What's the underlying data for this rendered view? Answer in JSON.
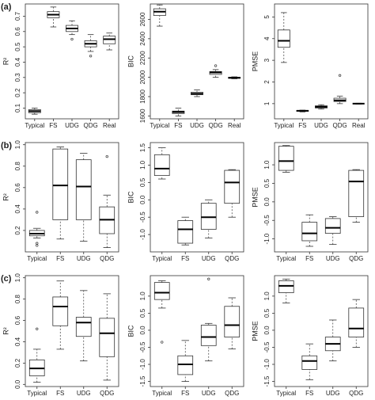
{
  "chart_data": [
    {
      "type": "box",
      "panel": "(a)",
      "ylabel": "R²",
      "categories": [
        "Typical",
        "FS",
        "UDG",
        "QDG",
        "Real"
      ],
      "ylim": [
        0.03,
        0.78
      ],
      "yticks": [
        0.1,
        0.2,
        0.3,
        0.4,
        0.5,
        0.6,
        0.7
      ],
      "boxes": [
        {
          "min": 0.06,
          "q1": 0.07,
          "median": 0.08,
          "q3": 0.09,
          "max": 0.1
        },
        {
          "min": 0.63,
          "q1": 0.69,
          "median": 0.71,
          "q3": 0.73,
          "max": 0.76
        },
        {
          "min": 0.58,
          "q1": 0.6,
          "median": 0.62,
          "q3": 0.64,
          "max": 0.67,
          "outliers": [
            0.55
          ]
        },
        {
          "min": 0.47,
          "q1": 0.5,
          "median": 0.52,
          "q3": 0.54,
          "max": 0.58,
          "outliers": [
            0.44
          ]
        },
        {
          "min": 0.48,
          "q1": 0.52,
          "median": 0.55,
          "q3": 0.57,
          "max": 0.59
        }
      ]
    },
    {
      "type": "box",
      "ylabel": "BIC",
      "categories": [
        "Typical",
        "FS",
        "UDG",
        "QDG",
        "Real"
      ],
      "ylim": [
        1570,
        2760
      ],
      "yticks": [
        1600,
        1800,
        2000,
        2200,
        2400,
        2600
      ],
      "boxes": [
        {
          "min": 2530,
          "q1": 2640,
          "median": 2680,
          "q3": 2710,
          "max": 2750
        },
        {
          "min": 1600,
          "q1": 1625,
          "median": 1640,
          "q3": 1650,
          "max": 1680
        },
        {
          "min": 1800,
          "q1": 1820,
          "median": 1830,
          "q3": 1845,
          "max": 1870
        },
        {
          "min": 2000,
          "q1": 2030,
          "median": 2050,
          "q3": 2060,
          "max": 2080,
          "outliers": [
            2120
          ]
        },
        {
          "min": 1985,
          "q1": 1990,
          "median": 1995,
          "q3": 2000,
          "max": 2005
        }
      ]
    },
    {
      "type": "box",
      "ylabel": "PMSE",
      "categories": [
        "Typical",
        "FS",
        "UDG",
        "QDG",
        "Real"
      ],
      "ylim": [
        0.3,
        5.6
      ],
      "yticks": [
        1,
        2,
        3,
        4,
        5
      ],
      "boxes": [
        {
          "min": 2.9,
          "q1": 3.6,
          "median": 3.9,
          "q3": 4.4,
          "max": 5.2
        },
        {
          "min": 0.62,
          "q1": 0.65,
          "median": 0.67,
          "q3": 0.68,
          "max": 0.7
        },
        {
          "min": 0.75,
          "q1": 0.8,
          "median": 0.85,
          "q3": 0.9,
          "max": 0.95
        },
        {
          "min": 1.0,
          "q1": 1.1,
          "median": 1.15,
          "q3": 1.25,
          "max": 1.35,
          "outliers": [
            2.3
          ]
        },
        {
          "min": 0.98,
          "q1": 1.0,
          "median": 1.0,
          "q3": 1.0,
          "max": 1.02
        }
      ]
    },
    {
      "type": "box",
      "panel": "(b)",
      "ylabel": "R²",
      "categories": [
        "Typical",
        "FS",
        "UDG",
        "QDG"
      ],
      "ylim": [
        0.0,
        1.02
      ],
      "yticks": [
        0.2,
        0.4,
        0.6,
        0.8,
        {
          "value": 1,
          "label": "1.0"
        }
      ],
      "boxes": [
        {
          "min": 0.13,
          "q1": 0.15,
          "median": 0.17,
          "q3": 0.2,
          "max": 0.22,
          "outliers": [
            0.37,
            0.08,
            0.06
          ]
        },
        {
          "min": 0.12,
          "q1": 0.3,
          "median": 0.62,
          "q3": 0.96,
          "max": 0.98
        },
        {
          "min": 0.1,
          "q1": 0.3,
          "median": 0.61,
          "q3": 0.86,
          "max": 0.92
        },
        {
          "min": 0.04,
          "q1": 0.17,
          "median": 0.3,
          "q3": 0.42,
          "max": 0.53,
          "outliers": [
            0.89
          ]
        }
      ]
    },
    {
      "type": "box",
      "ylabel": "BIC",
      "categories": [
        "Typical",
        "FS",
        "UDG",
        "QDG"
      ],
      "ylim": [
        -1.5,
        1.65
      ],
      "yticks": [
        {
          "value": -1,
          "label": "-1.0"
        },
        -0.5,
        {
          "value": 0,
          "label": "0.0"
        },
        0.5,
        {
          "value": 1,
          "label": "1.0"
        },
        1.5
      ],
      "boxes": [
        {
          "min": 0.6,
          "q1": 0.7,
          "median": 0.9,
          "q3": 1.3,
          "max": 1.5
        },
        {
          "min": -1.3,
          "q1": -1.25,
          "median": -0.85,
          "q3": -0.6,
          "max": -0.5
        },
        {
          "min": -1.1,
          "q1": -0.85,
          "median": -0.5,
          "q3": -0.1,
          "max": 0.0
        },
        {
          "min": -0.5,
          "q1": -0.1,
          "median": 0.5,
          "q3": 0.85,
          "max": 0.87
        }
      ]
    },
    {
      "type": "box",
      "ylabel": "PMSE",
      "categories": [
        "Typical",
        "FS",
        "UDG",
        "QDG"
      ],
      "ylim": [
        -1.35,
        1.6
      ],
      "yticks": [
        {
          "value": -1,
          "label": "-1.0"
        },
        -0.5,
        {
          "value": 0,
          "label": "0.0"
        },
        0.5,
        {
          "value": 1,
          "label": "1.0"
        }
      ],
      "boxes": [
        {
          "min": 0.8,
          "q1": 0.85,
          "median": 1.1,
          "q3": 1.5,
          "max": 1.52
        },
        {
          "min": -1.2,
          "q1": -1.05,
          "median": -0.85,
          "q3": -0.55,
          "max": -0.35
        },
        {
          "min": -1.15,
          "q1": -0.85,
          "median": -0.7,
          "q3": -0.45,
          "max": -0.4
        },
        {
          "min": -0.55,
          "q1": -0.4,
          "median": 0.55,
          "q3": 0.85,
          "max": 0.87
        }
      ]
    },
    {
      "type": "box",
      "panel": "(c)",
      "ylabel": "R²",
      "categories": [
        "Typical",
        "FS",
        "UDG",
        "QDG"
      ],
      "ylim": [
        -0.02,
        1.02
      ],
      "yticks": [
        {
          "value": 0,
          "label": "0.0"
        },
        0.2,
        0.4,
        0.6,
        0.8,
        {
          "value": 1,
          "label": "1.0"
        }
      ],
      "boxes": [
        {
          "min": 0.02,
          "q1": 0.08,
          "median": 0.15,
          "q3": 0.23,
          "max": 0.33,
          "outliers": [
            0.52
          ]
        },
        {
          "min": 0.33,
          "q1": 0.55,
          "median": 0.73,
          "q3": 0.82,
          "max": 0.97
        },
        {
          "min": 0.22,
          "q1": 0.45,
          "median": 0.58,
          "q3": 0.63,
          "max": 0.88
        },
        {
          "min": 0.04,
          "q1": 0.26,
          "median": 0.48,
          "q3": 0.62,
          "max": 0.85
        }
      ]
    },
    {
      "type": "box",
      "ylabel": "BIC",
      "categories": [
        "Typical",
        "FS",
        "UDG",
        "QDG"
      ],
      "ylim": [
        -1.65,
        1.6
      ],
      "yticks": [
        -1.5,
        {
          "value": -1,
          "label": "-1.0"
        },
        -0.5,
        {
          "value": 0,
          "label": "0.0"
        },
        0.5,
        {
          "value": 1,
          "label": "1.0"
        }
      ],
      "boxes": [
        {
          "min": 0.65,
          "q1": 0.9,
          "median": 1.1,
          "q3": 1.4,
          "max": 1.45,
          "outliers": [
            -0.35
          ]
        },
        {
          "min": -1.5,
          "q1": -1.3,
          "median": -1.0,
          "q3": -0.75,
          "max": -0.3
        },
        {
          "min": -0.9,
          "q1": -0.45,
          "median": -0.2,
          "q3": 0.15,
          "max": 0.2,
          "outliers": [
            1.5
          ]
        },
        {
          "min": -0.55,
          "q1": -0.2,
          "median": 0.15,
          "q3": 0.7,
          "max": 0.95
        }
      ]
    },
    {
      "type": "box",
      "ylabel": "PMSE",
      "categories": [
        "Typical",
        "FS",
        "UDG",
        "QDG"
      ],
      "ylim": [
        -1.65,
        1.6
      ],
      "yticks": [
        -1.5,
        {
          "value": -1,
          "label": "-1.0"
        },
        -0.5,
        {
          "value": 0,
          "label": "0.0"
        },
        0.5,
        {
          "value": 1,
          "label": "1.0"
        }
      ],
      "boxes": [
        {
          "min": 0.8,
          "q1": 1.1,
          "median": 1.3,
          "q3": 1.45,
          "max": 1.5
        },
        {
          "min": -1.45,
          "q1": -1.15,
          "median": -0.9,
          "q3": -0.75,
          "max": -0.4
        },
        {
          "min": -0.9,
          "q1": -0.6,
          "median": -0.4,
          "q3": -0.2,
          "max": 0.3
        },
        {
          "min": -0.5,
          "q1": -0.2,
          "median": 0.05,
          "q3": 0.65,
          "max": 0.9
        }
      ]
    }
  ]
}
